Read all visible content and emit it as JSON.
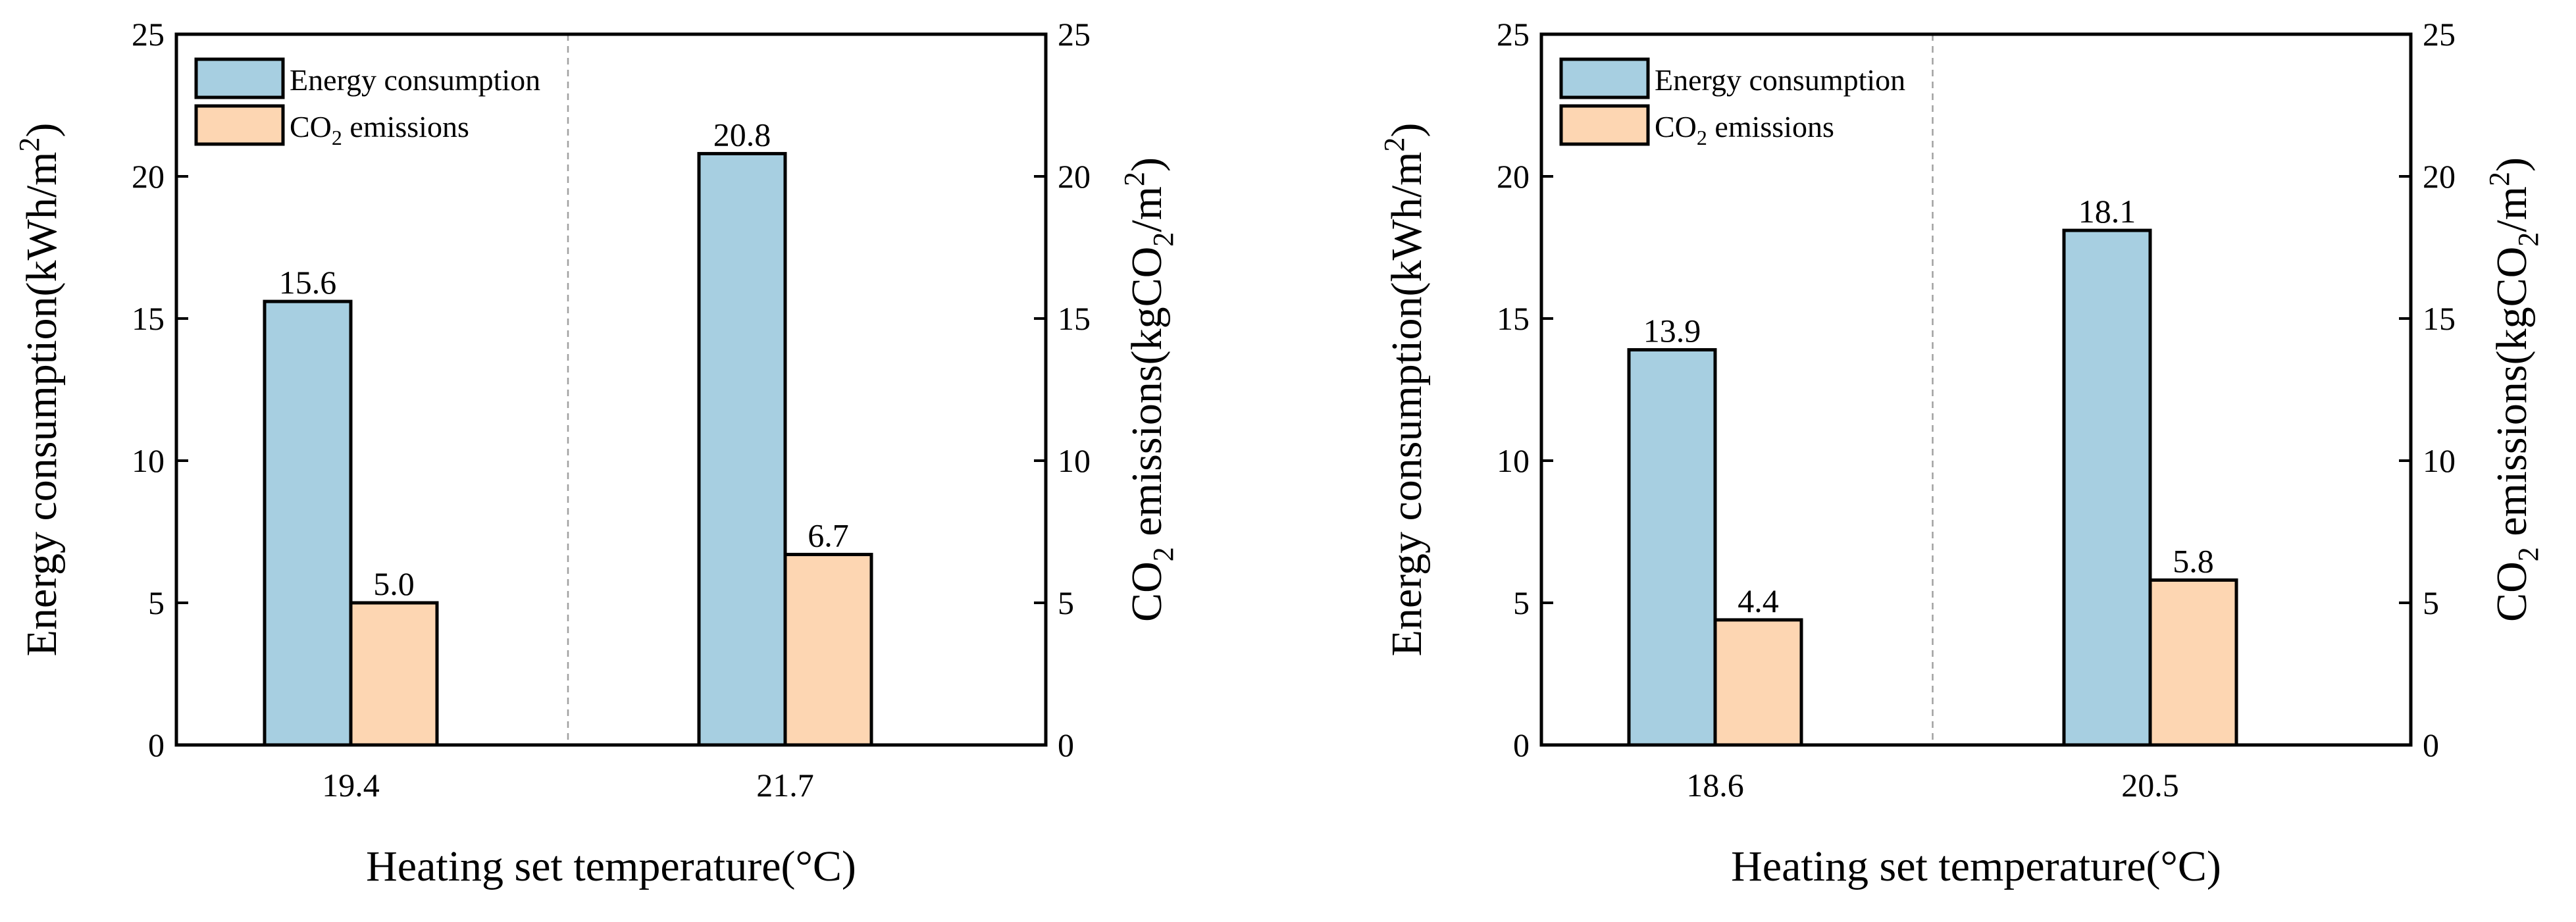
{
  "colors": {
    "energy": "#a7cfe1",
    "co2": "#fdd6b2"
  },
  "chart_data": [
    {
      "type": "bar",
      "categories": [
        "19.4",
        "21.7"
      ],
      "series": [
        {
          "name": "Energy consumption",
          "values": [
            15.6,
            20.8
          ],
          "labels": [
            "15.6",
            "20.8"
          ]
        },
        {
          "name": "CO2 emissions",
          "values": [
            5.0,
            6.7
          ],
          "labels": [
            "5.0",
            "6.7"
          ]
        }
      ],
      "legend": {
        "energy_label": "Energy consumption",
        "co2_main": "CO",
        "co2_sub": "2",
        "co2_rest": " emissions"
      },
      "xlabel": "Heating set temperature(°C)",
      "ylabel_left": {
        "main": "Energy consumption(kWh/m",
        "sup": "2",
        "end": ")"
      },
      "ylabel_right": {
        "p1": "CO",
        "s1": "2",
        "p2": " emissions(kgCO",
        "s2": "2",
        "p3": "/m",
        "sup": "2",
        "end": ")"
      },
      "ylim": [
        0,
        25
      ],
      "yticks": [
        "0",
        "5",
        "10",
        "15",
        "20",
        "25"
      ],
      "legend_position": "top-left"
    },
    {
      "type": "bar",
      "categories": [
        "18.6",
        "20.5"
      ],
      "series": [
        {
          "name": "Energy consumption",
          "values": [
            13.9,
            18.1
          ],
          "labels": [
            "13.9",
            "18.1"
          ]
        },
        {
          "name": "CO2 emissions",
          "values": [
            4.4,
            5.8
          ],
          "labels": [
            "4.4",
            "5.8"
          ]
        }
      ],
      "legend": {
        "energy_label": "Energy consumption",
        "co2_main": "CO",
        "co2_sub": "2",
        "co2_rest": " emissions"
      },
      "xlabel": "Heating set temperature(°C)",
      "ylabel_left": {
        "main": "Energy consumption(kWh/m",
        "sup": "2",
        "end": ")"
      },
      "ylabel_right": {
        "p1": "CO",
        "s1": "2",
        "p2": " emissions(kgCO",
        "s2": "2",
        "p3": "/m",
        "sup": "2",
        "end": ")"
      },
      "ylim": [
        0,
        25
      ],
      "yticks": [
        "0",
        "5",
        "10",
        "15",
        "20",
        "25"
      ],
      "legend_position": "top-left"
    }
  ]
}
